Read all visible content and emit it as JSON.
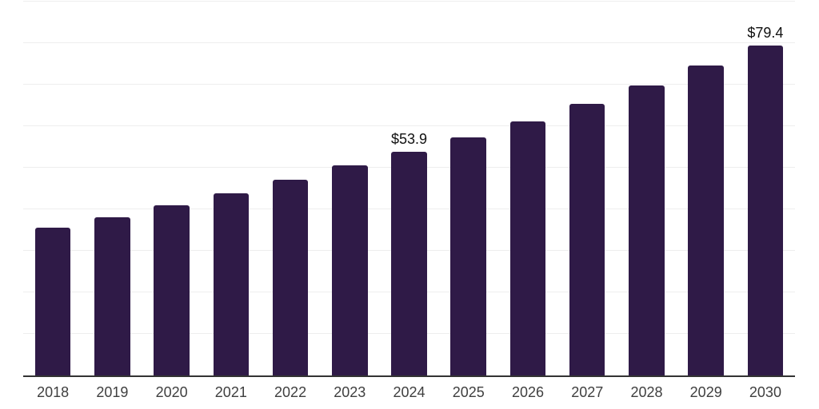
{
  "chart_data": {
    "type": "bar",
    "title": "",
    "xlabel": "",
    "ylabel": "",
    "categories": [
      "2018",
      "2019",
      "2020",
      "2021",
      "2022",
      "2023",
      "2024",
      "2025",
      "2026",
      "2027",
      "2028",
      "2029",
      "2030"
    ],
    "values": [
      35.5,
      38.0,
      41.0,
      43.8,
      47.1,
      50.5,
      53.9,
      57.3,
      61.2,
      65.4,
      69.9,
      74.6,
      79.4
    ],
    "data_labels": [
      {
        "category": "2024",
        "text": "$53.9"
      },
      {
        "category": "2030",
        "text": "$79.4"
      }
    ],
    "ylim": [
      0,
      90
    ],
    "grid_step": 10,
    "grid": true,
    "legend": false,
    "y_tick_labels_shown": false,
    "bar_color": "#2f1a47",
    "grid_color": "#eeeeee",
    "axis_color": "#333333",
    "tick_color": "#3f3f3f",
    "label_color": "#111111",
    "background_color": "#ffffff"
  }
}
